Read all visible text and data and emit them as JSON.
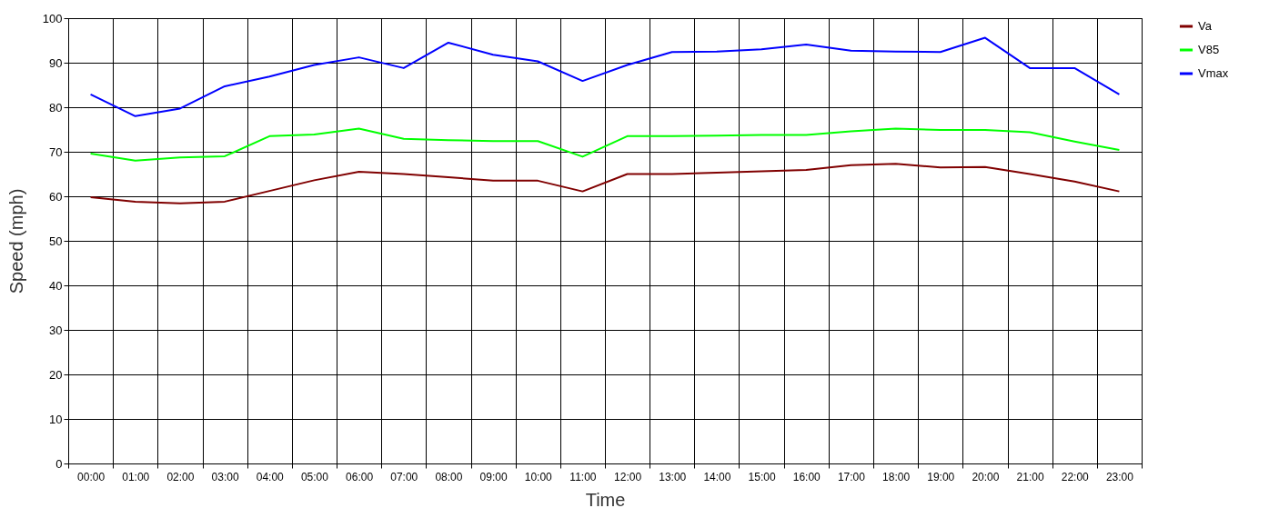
{
  "chart_data": {
    "type": "line",
    "xlabel": "Time",
    "ylabel": "Speed (mph)",
    "categories": [
      "00:00",
      "01:00",
      "02:00",
      "03:00",
      "04:00",
      "05:00",
      "06:00",
      "07:00",
      "08:00",
      "09:00",
      "10:00",
      "11:00",
      "12:00",
      "13:00",
      "14:00",
      "15:00",
      "16:00",
      "17:00",
      "18:00",
      "19:00",
      "20:00",
      "21:00",
      "22:00",
      "23:00"
    ],
    "series": [
      {
        "name": "Va",
        "color": "#800000",
        "values": [
          59.8,
          58.8,
          58.4,
          58.8,
          61.2,
          63.6,
          65.5,
          65,
          64.3,
          63.5,
          63.5,
          61.1,
          65,
          65,
          65.3,
          65.6,
          65.9,
          67,
          67.3,
          66.5,
          66.6,
          65,
          63.3,
          61.1
        ]
      },
      {
        "name": "V85",
        "color": "#00ff00",
        "values": [
          69.6,
          68,
          68.7,
          69,
          73.5,
          73.9,
          75.2,
          72.9,
          72.6,
          72.4,
          72.4,
          68.9,
          73.5,
          73.5,
          73.6,
          73.8,
          73.8,
          74.6,
          75.2,
          74.9,
          74.9,
          74.4,
          72.3,
          70.4
        ]
      },
      {
        "name": "Vmax",
        "color": "#0000ff",
        "values": [
          82.9,
          78,
          79.7,
          84.7,
          86.9,
          89.5,
          91.2,
          88.8,
          94.5,
          91.8,
          90.3,
          85.9,
          89.5,
          92.4,
          92.5,
          93,
          94.1,
          92.7,
          92.5,
          92.4,
          95.6,
          88.8,
          88.8,
          82.9
        ]
      }
    ],
    "ylim": [
      0,
      100
    ],
    "yticks": [
      0,
      10,
      20,
      30,
      40,
      50,
      60,
      70,
      80,
      90,
      100
    ],
    "grid": true,
    "legend": "right",
    "marker": "none",
    "line_style": "solid"
  }
}
